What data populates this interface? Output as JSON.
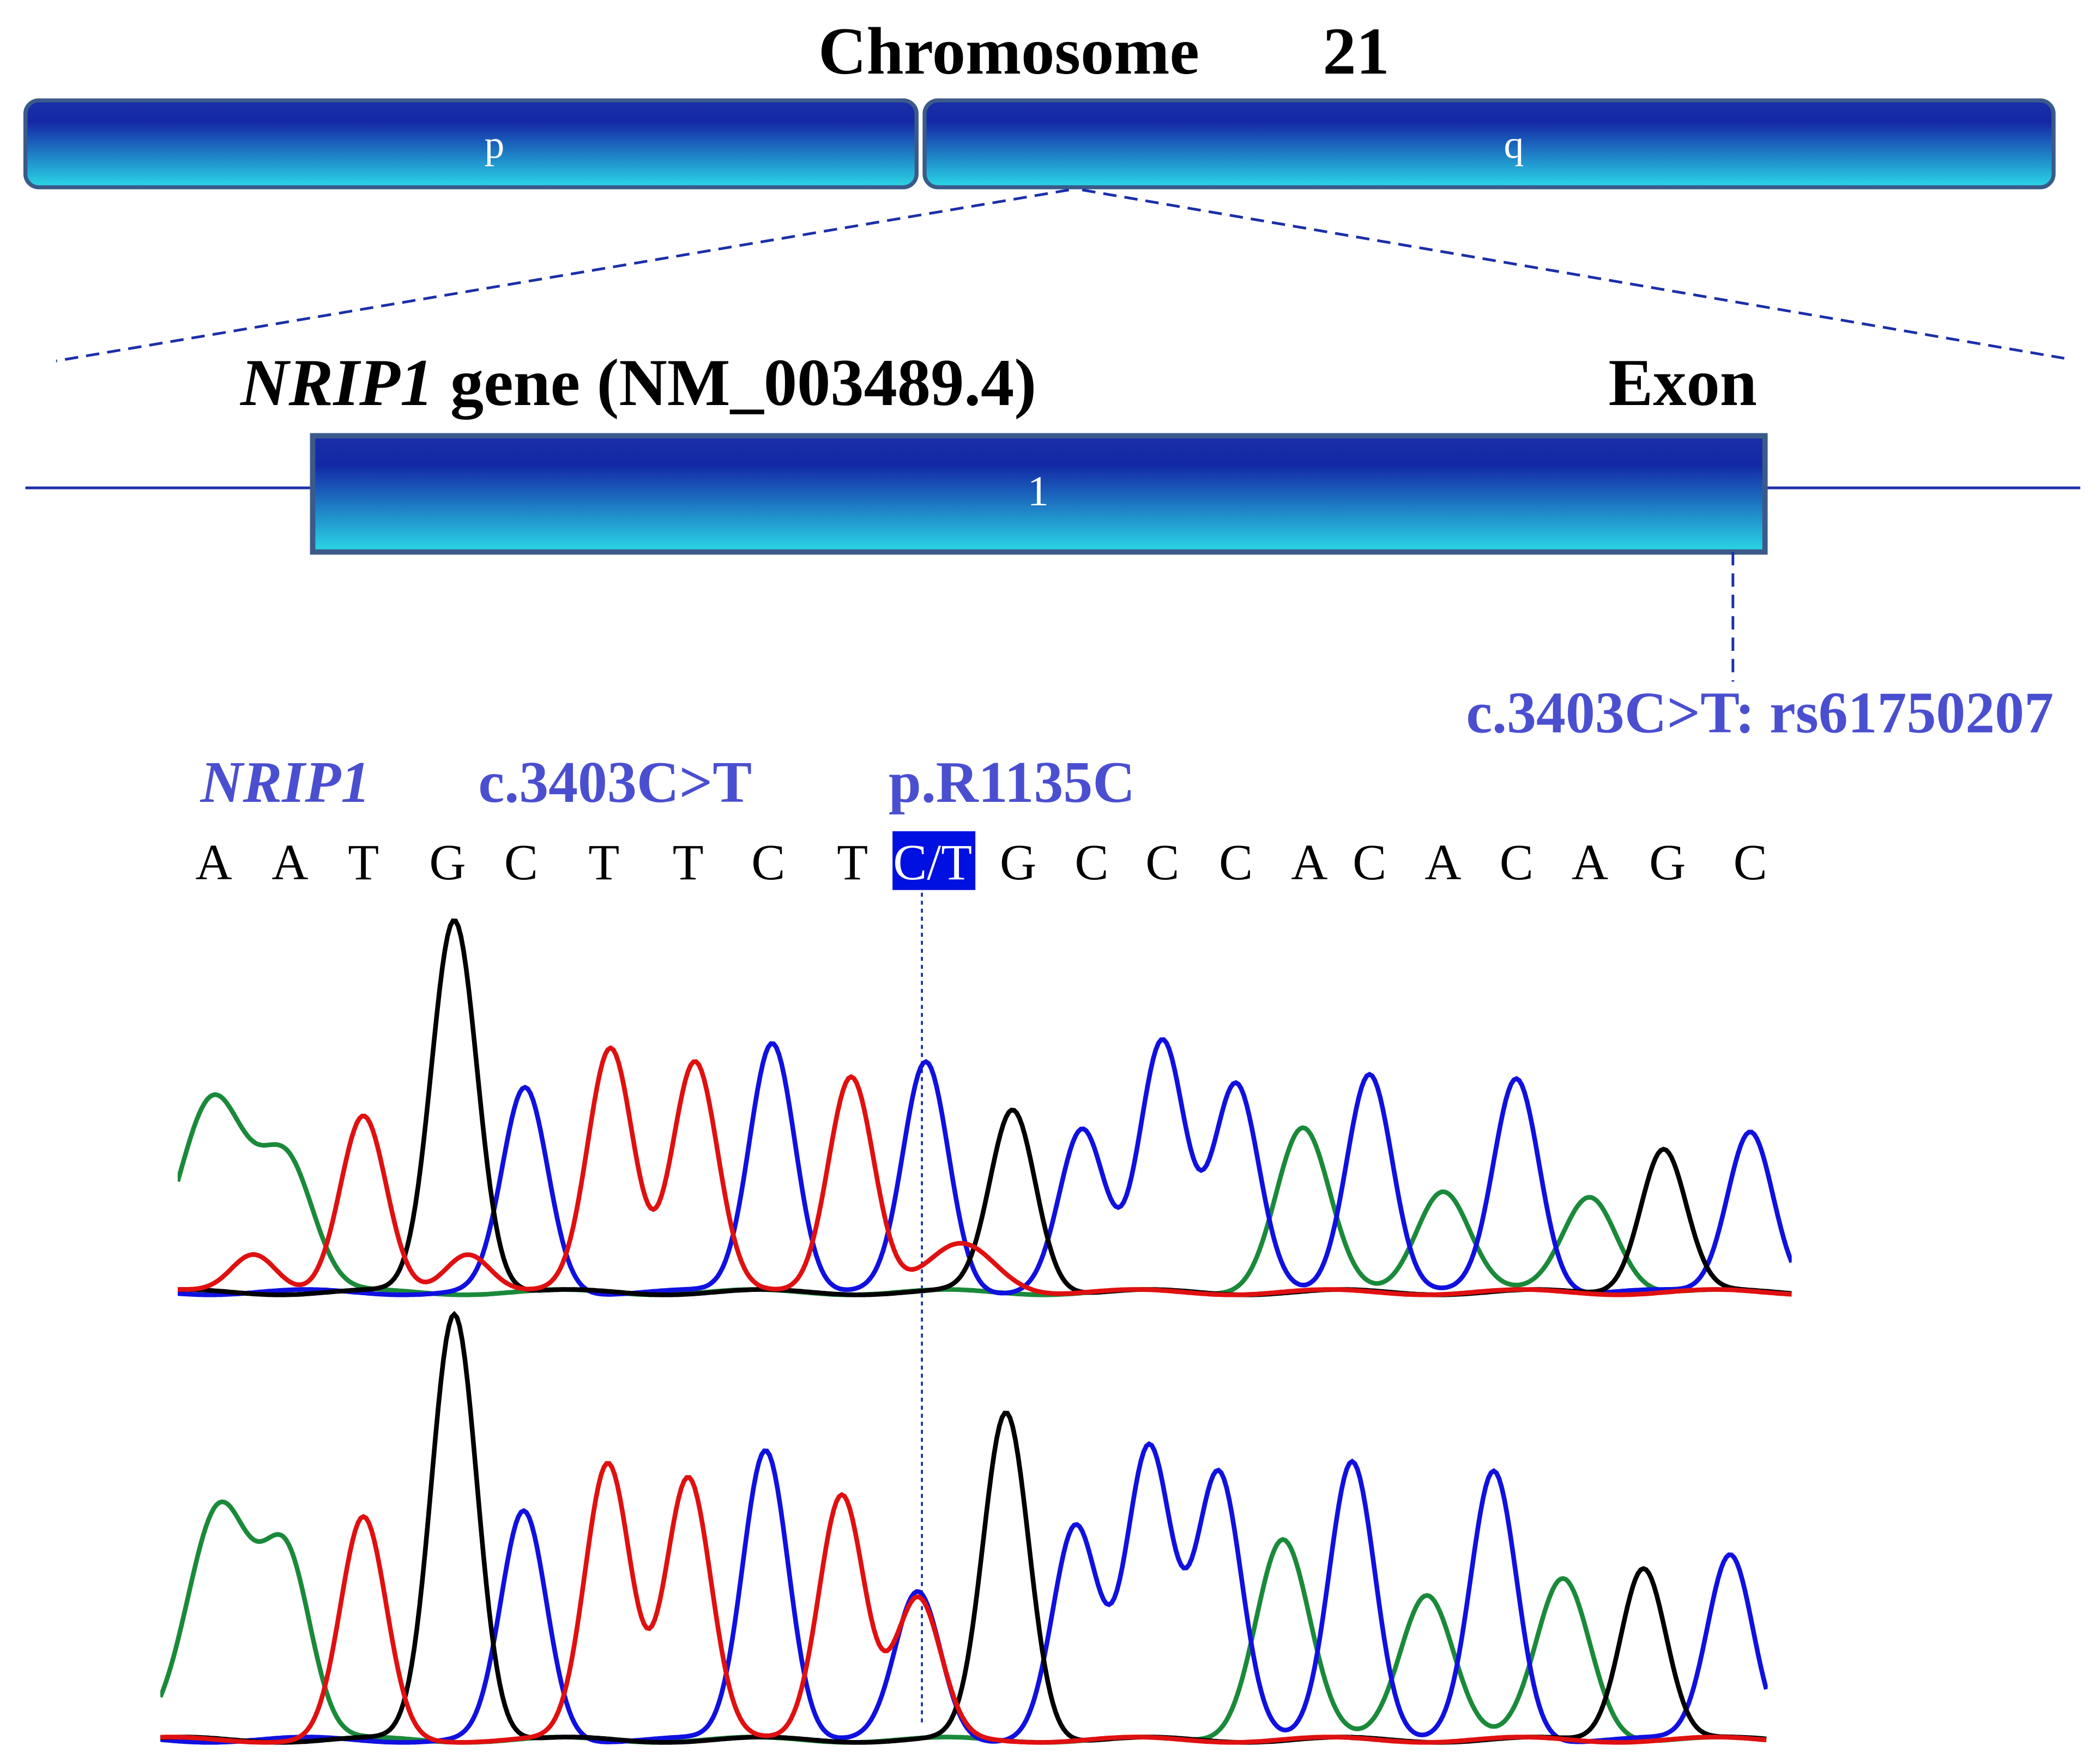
{
  "chromosome": {
    "label": "Chromosome",
    "number": "21",
    "arms": [
      "p",
      "q"
    ]
  },
  "gene": {
    "name": "NRIP1",
    "description": "gene (NM_003489.4)",
    "region_label": "Exon",
    "exon": "1"
  },
  "variant": {
    "label": "c.3403C>T: rs61750207"
  },
  "sequence": {
    "gene": "NRIP1",
    "cdna": "c.3403C>T",
    "protein": "p.R1135C",
    "bases": [
      "A",
      "A",
      "T",
      "G",
      "C",
      "T",
      "T",
      "C",
      "T",
      "C/T",
      "G",
      "C",
      "C",
      "C",
      "A",
      "C",
      "A",
      "C",
      "A",
      "G",
      "C"
    ]
  }
}
